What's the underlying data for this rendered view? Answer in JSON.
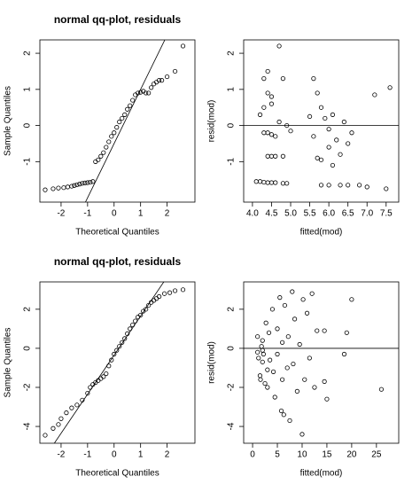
{
  "chart_data": [
    {
      "type": "scatter",
      "title": "normal qq-plot, residuals",
      "xlabel": "Theoretical Quantiles",
      "ylabel": "Sample Quantiles",
      "xlim": [
        -2.8,
        3.05
      ],
      "ylim": [
        -2.12,
        2.37
      ],
      "xticks": [
        -2,
        -1,
        0,
        1,
        2
      ],
      "yticks": [
        -1,
        0,
        1,
        2
      ],
      "qqline": {
        "intercept": -0.5,
        "slope": 1.5
      },
      "x": [
        -2.6,
        -2.3,
        -2.1,
        -1.9,
        -1.75,
        -1.6,
        -1.5,
        -1.4,
        -1.3,
        -1.2,
        -1.1,
        -1.0,
        -0.9,
        -0.8,
        -0.7,
        -0.6,
        -0.5,
        -0.4,
        -0.3,
        -0.2,
        -0.1,
        0,
        0.1,
        0.2,
        0.3,
        0.4,
        0.5,
        0.6,
        0.7,
        0.8,
        0.9,
        1.0,
        1.1,
        1.2,
        1.3,
        1.4,
        1.5,
        1.6,
        1.7,
        1.8,
        2.0,
        2.3,
        2.6
      ],
      "values": [
        -1.78,
        -1.75,
        -1.73,
        -1.72,
        -1.7,
        -1.68,
        -1.66,
        -1.64,
        -1.62,
        -1.6,
        -1.59,
        -1.58,
        -1.57,
        -1.55,
        -1.0,
        -0.95,
        -0.85,
        -0.75,
        -0.6,
        -0.45,
        -0.3,
        -0.2,
        -0.05,
        0.1,
        0.2,
        0.3,
        0.45,
        0.55,
        0.7,
        0.85,
        0.9,
        0.92,
        0.95,
        0.9,
        0.9,
        1.05,
        1.15,
        1.2,
        1.25,
        1.25,
        1.35,
        1.5,
        2.2
      ]
    },
    {
      "type": "scatter",
      "xlabel": "fitted(mod)",
      "ylabel": "resid(mod)",
      "xlim": [
        3.77,
        7.83
      ],
      "ylim": [
        -2.12,
        2.37
      ],
      "xticks": [
        {
          "value": 4,
          "label": "4.0"
        },
        {
          "value": 4.5,
          "label": "4.5"
        },
        {
          "value": 5,
          "label": "5.0"
        },
        {
          "value": 5.5,
          "label": "5.5"
        },
        {
          "value": 6,
          "label": "6.0"
        },
        {
          "value": 6.5,
          "label": "6.5"
        },
        {
          "value": 7,
          "label": "7.0"
        },
        {
          "value": 7.5,
          "label": "7.5"
        }
      ],
      "yticks": [
        -1,
        0,
        1,
        2
      ],
      "hline": 0,
      "x": [
        4.1,
        4.2,
        4.3,
        4.4,
        4.5,
        4.6,
        4.8,
        4.9,
        4.2,
        4.3,
        4.4,
        4.4,
        4.5,
        4.5,
        4.3,
        4.4,
        4.5,
        4.6,
        4.4,
        4.5,
        4.6,
        4.8,
        4.7,
        4.8,
        4.9,
        4.7,
        5.0,
        4.3,
        5.6,
        5.7,
        5.8,
        5.9,
        6.0,
        6.1,
        6.2,
        5.7,
        5.8,
        6.0,
        6.3,
        6.1,
        6.5,
        6.6,
        5.8,
        6.0,
        6.3,
        6.5,
        6.8,
        7.0,
        7.5,
        7.2,
        7.6,
        5.5,
        5.6,
        6.4
      ],
      "values": [
        -1.55,
        -1.55,
        -1.57,
        -1.58,
        -1.58,
        -1.58,
        -1.6,
        -1.6,
        0.3,
        1.3,
        1.5,
        0.9,
        0.8,
        0.6,
        -0.2,
        -0.2,
        -0.25,
        -0.3,
        -0.85,
        -0.85,
        -0.85,
        -0.85,
        0.1,
        1.3,
        0.0,
        2.2,
        -0.15,
        0.5,
        1.3,
        0.9,
        0.5,
        0.2,
        -0.1,
        0.3,
        -0.4,
        -0.9,
        -0.95,
        -0.6,
        -0.8,
        -1.1,
        -0.5,
        -0.2,
        -1.65,
        -1.65,
        -1.65,
        -1.65,
        -1.65,
        -1.7,
        -1.75,
        0.85,
        1.05,
        0.25,
        -0.3,
        0.1
      ]
    },
    {
      "type": "scatter",
      "title": "normal qq-plot, residuals",
      "xlabel": "Theoretical Quantiles",
      "ylabel": "Sample Quantiles",
      "xlim": [
        -2.8,
        3.05
      ],
      "ylim": [
        -4.86,
        3.4
      ],
      "xticks": [
        -2,
        -1,
        0,
        1,
        2
      ],
      "yticks": [
        -4,
        -2,
        0,
        2
      ],
      "qqline": {
        "intercept": -0.35,
        "slope": 2
      },
      "x": [
        -2.6,
        -2.3,
        -2.1,
        -2.0,
        -1.8,
        -1.6,
        -1.4,
        -1.2,
        -1.0,
        -0.9,
        -0.8,
        -0.7,
        -0.6,
        -0.5,
        -0.4,
        -0.3,
        -0.2,
        -0.1,
        0,
        0.1,
        0.2,
        0.3,
        0.4,
        0.5,
        0.6,
        0.7,
        0.8,
        0.9,
        1.0,
        1.1,
        1.2,
        1.3,
        1.4,
        1.5,
        1.6,
        1.7,
        1.9,
        2.1,
        2.3,
        2.6
      ],
      "values": [
        -4.45,
        -4.1,
        -3.9,
        -3.6,
        -3.3,
        -3.05,
        -2.9,
        -2.65,
        -2.3,
        -2.0,
        -1.85,
        -1.75,
        -1.65,
        -1.55,
        -1.45,
        -1.3,
        -0.9,
        -0.6,
        -0.3,
        -0.1,
        0.1,
        0.3,
        0.5,
        0.75,
        1.0,
        1.2,
        1.4,
        1.6,
        1.7,
        1.9,
        2.0,
        2.2,
        2.35,
        2.45,
        2.55,
        2.65,
        2.8,
        2.85,
        2.95,
        3.0
      ]
    },
    {
      "type": "scatter",
      "xlabel": "fitted(mod)",
      "ylabel": "resid(mod)",
      "xlim": [
        -1.8,
        29.5
      ],
      "ylim": [
        -4.86,
        3.4
      ],
      "xticks": [
        0,
        5,
        10,
        15,
        20,
        25
      ],
      "yticks": [
        -4,
        -2,
        0,
        2
      ],
      "hline": 0,
      "x": [
        1,
        1,
        1.2,
        1.5,
        1.6,
        1.8,
        2,
        2,
        2.2,
        2.5,
        2.7,
        3,
        3.3,
        3.5,
        4,
        4.2,
        4.5,
        5,
        5,
        5.5,
        5.8,
        6,
        6.3,
        6.5,
        7,
        7.2,
        7.5,
        8,
        8.2,
        8.5,
        9,
        9.5,
        10,
        10.2,
        10.5,
        11,
        11.5,
        12,
        12.5,
        13,
        14.5,
        14.5,
        15,
        18.5,
        19,
        20,
        26,
        2,
        3,
        6
      ],
      "values": [
        0.6,
        -0.2,
        -0.5,
        -1.4,
        -1.6,
        0.1,
        -0.1,
        0.4,
        -0.3,
        -1.8,
        1.3,
        -2.0,
        0.8,
        -0.6,
        2.0,
        -1.2,
        -2.5,
        1.0,
        -0.3,
        2.6,
        -3.2,
        0.3,
        -3.4,
        2.2,
        -1.0,
        0.6,
        -3.7,
        2.9,
        -0.8,
        1.5,
        -2.2,
        0.2,
        -4.4,
        2.5,
        -1.6,
        1.8,
        -0.5,
        2.8,
        -2.0,
        0.9,
        -1.7,
        0.9,
        -2.6,
        -0.3,
        0.8,
        2.5,
        -2.1,
        -0.7,
        -1.1,
        -1.6
      ]
    }
  ]
}
